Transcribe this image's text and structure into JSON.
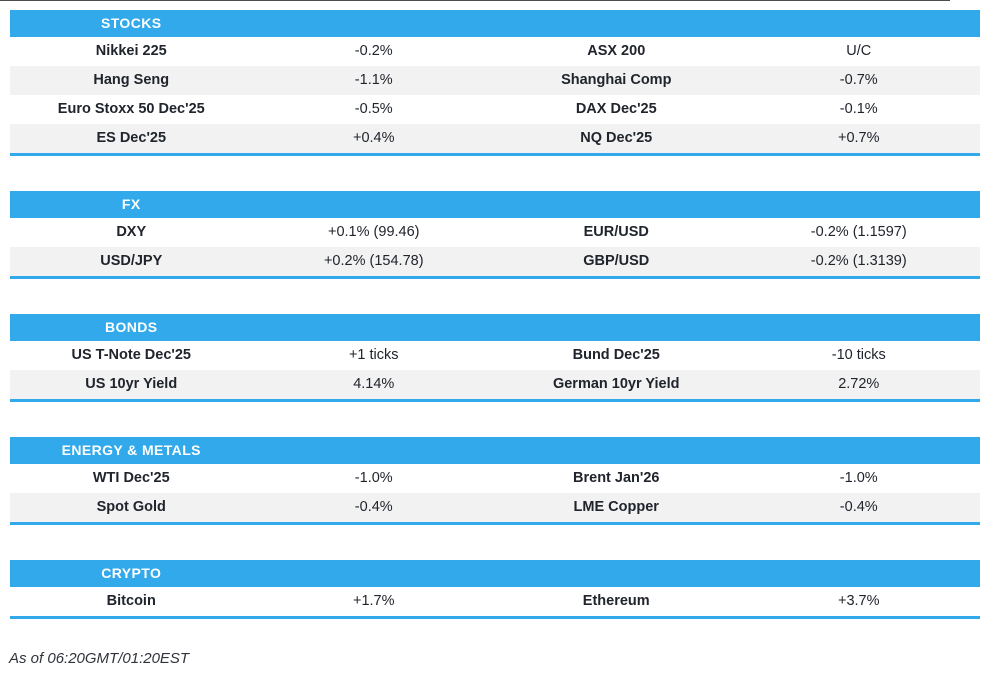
{
  "colors": {
    "accent": "#32a9ea",
    "stripe": "#f2f2f2",
    "ink": "#20242c",
    "top_line": "#4c4c4c"
  },
  "sections": [
    {
      "title": "STOCKS",
      "rows": [
        [
          "Nikkei 225",
          "-0.2%",
          "ASX 200",
          "U/C"
        ],
        [
          "Hang Seng",
          "-1.1%",
          "Shanghai Comp",
          "-0.7%"
        ],
        [
          "Euro Stoxx 50 Dec'25",
          "-0.5%",
          "DAX Dec'25",
          "-0.1%"
        ],
        [
          "ES Dec'25",
          "+0.4%",
          "NQ Dec'25",
          "+0.7%"
        ]
      ]
    },
    {
      "title": "FX",
      "rows": [
        [
          "DXY",
          "+0.1% (99.46)",
          "EUR/USD",
          "-0.2% (1.1597)"
        ],
        [
          "USD/JPY",
          "+0.2% (154.78)",
          "GBP/USD",
          "-0.2% (1.3139)"
        ]
      ]
    },
    {
      "title": "BONDS",
      "rows": [
        [
          "US T-Note Dec'25",
          "+1 ticks",
          "Bund Dec'25",
          "-10 ticks"
        ],
        [
          "US 10yr Yield",
          "4.14%",
          "German 10yr Yield",
          "2.72%"
        ]
      ]
    },
    {
      "title": "ENERGY & METALS",
      "rows": [
        [
          "WTI Dec'25",
          "-1.0%",
          "Brent Jan'26",
          "-1.0%"
        ],
        [
          "Spot Gold",
          "-0.4%",
          "LME Copper",
          "-0.4%"
        ]
      ]
    },
    {
      "title": "CRYPTO",
      "rows": [
        [
          "Bitcoin",
          "+1.7%",
          "Ethereum",
          "+3.7%"
        ]
      ]
    }
  ],
  "footer": {
    "as_of": "As of 06:20GMT/01:20EST"
  }
}
